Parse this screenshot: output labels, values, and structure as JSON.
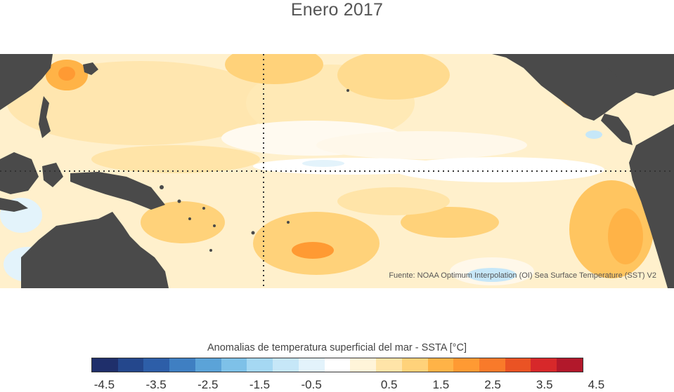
{
  "title": "Enero 2017",
  "source": "Fuente: NOAA Optimum Interpolation (OI) Sea Surface Temperature (SST) V2",
  "colorbar": {
    "label": "Anomalias de temperatura superficial del mar - SSTA  [°C]",
    "colors": [
      "#1f2f6b",
      "#24478c",
      "#2d5ea8",
      "#3f7fc2",
      "#5ba3d8",
      "#7ec1e8",
      "#a5d8f3",
      "#c6e7f8",
      "#e3f3fb",
      "#ffffff",
      "#fff4d9",
      "#ffe4a8",
      "#ffd27a",
      "#ffb347",
      "#ff9a33",
      "#f97a2a",
      "#ea5324",
      "#d7282a",
      "#b2182b"
    ],
    "ticks": [
      "-4.5",
      "-3.5",
      "-2.5",
      "-1.5",
      "-0.5",
      "0.5",
      "1.5",
      "2.5",
      "3.5",
      "4.5"
    ]
  },
  "land_color": "#4a4a4a",
  "ocean_base_color": "#fff0cc"
}
